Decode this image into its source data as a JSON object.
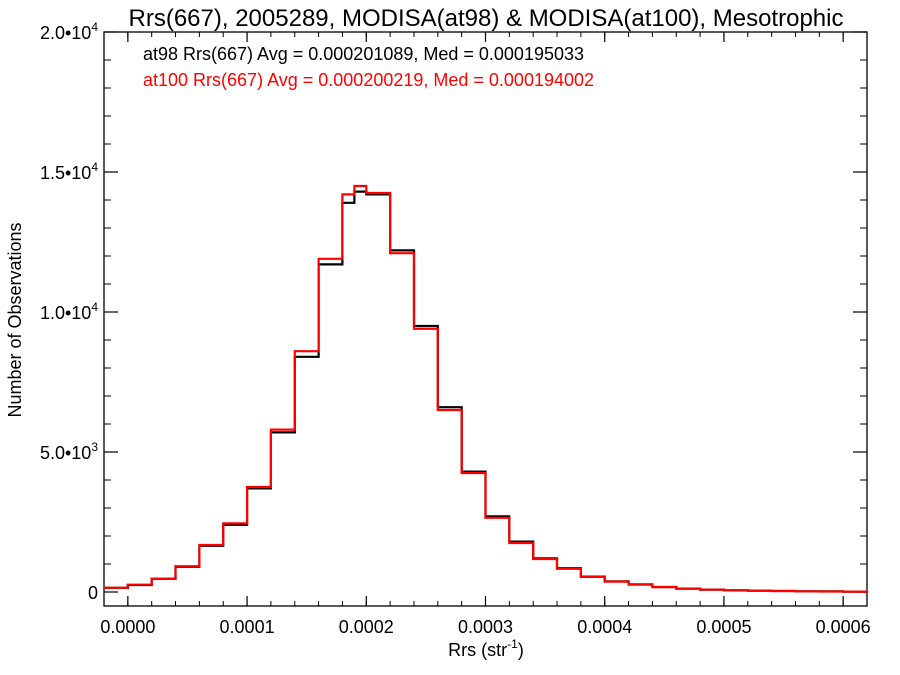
{
  "chart_data": {
    "type": "line",
    "title": "Rrs(667), 2005289, MODISA(at98) & MODISA(at100), Mesotrophic",
    "xlabel": "Rrs (str",
    "xlabel_sup": "-1",
    "xlabel_close": ")",
    "ylabel": "Number of Observations",
    "xlim": [
      -2e-05,
      0.00062
    ],
    "ylim": [
      -500,
      20000
    ],
    "x_ticks": [
      0.0,
      0.0001,
      0.0002,
      0.0003,
      0.0004,
      0.0005,
      0.0006
    ],
    "x_tick_labels": [
      "0.0000",
      "0.0001",
      "0.0002",
      "0.0003",
      "0.0004",
      "0.0005",
      "0.0006"
    ],
    "y_ticks": [
      0,
      5000,
      10000,
      15000,
      20000
    ],
    "y_tick_labels": [
      {
        "base": "0",
        "exp": ""
      },
      {
        "base": "5.0•10",
        "exp": "3"
      },
      {
        "base": "1.0•10",
        "exp": "4"
      },
      {
        "base": "1.5•10",
        "exp": "4"
      },
      {
        "base": "2.0•10",
        "exp": "4"
      }
    ],
    "legend_placement": "top-left",
    "series": [
      {
        "name": "at98",
        "color": "#000000",
        "annotation": "at98 Rrs(667) Avg = 0.000201089, Med = 0.000195033",
        "points": [
          [
            -2e-05,
            150
          ],
          [
            0.0,
            250
          ],
          [
            2e-05,
            470
          ],
          [
            4e-05,
            900
          ],
          [
            6e-05,
            1650
          ],
          [
            8e-05,
            2400
          ],
          [
            0.0001,
            3700
          ],
          [
            0.00012,
            5700
          ],
          [
            0.00014,
            8400
          ],
          [
            0.00016,
            11700
          ],
          [
            0.00018,
            13900
          ],
          [
            0.00019,
            14300
          ],
          [
            0.0002,
            14200
          ],
          [
            0.00022,
            12200
          ],
          [
            0.00024,
            9500
          ],
          [
            0.00026,
            6600
          ],
          [
            0.00028,
            4300
          ],
          [
            0.0003,
            2700
          ],
          [
            0.00032,
            1800
          ],
          [
            0.00034,
            1200
          ],
          [
            0.00036,
            850
          ],
          [
            0.00038,
            550
          ],
          [
            0.0004,
            380
          ],
          [
            0.00042,
            270
          ],
          [
            0.00044,
            180
          ],
          [
            0.00046,
            120
          ],
          [
            0.00048,
            85
          ],
          [
            0.0005,
            60
          ],
          [
            0.00052,
            45
          ],
          [
            0.00054,
            35
          ],
          [
            0.00056,
            25
          ],
          [
            0.00058,
            20
          ],
          [
            0.0006,
            15
          ],
          [
            0.00062,
            10
          ]
        ]
      },
      {
        "name": "at100",
        "color": "#ff0000",
        "annotation": "at100 Rrs(667) Avg = 0.000200219, Med = 0.000194002",
        "points": [
          [
            -2e-05,
            150
          ],
          [
            0.0,
            260
          ],
          [
            2e-05,
            480
          ],
          [
            4e-05,
            920
          ],
          [
            6e-05,
            1680
          ],
          [
            8e-05,
            2450
          ],
          [
            0.0001,
            3750
          ],
          [
            0.00012,
            5800
          ],
          [
            0.00014,
            8600
          ],
          [
            0.00016,
            11900
          ],
          [
            0.00018,
            14200
          ],
          [
            0.00019,
            14500
          ],
          [
            0.0002,
            14250
          ],
          [
            0.00022,
            12100
          ],
          [
            0.00024,
            9400
          ],
          [
            0.00026,
            6500
          ],
          [
            0.00028,
            4250
          ],
          [
            0.0003,
            2650
          ],
          [
            0.00032,
            1750
          ],
          [
            0.00034,
            1180
          ],
          [
            0.00036,
            830
          ],
          [
            0.00038,
            540
          ],
          [
            0.0004,
            370
          ],
          [
            0.00042,
            265
          ],
          [
            0.00044,
            175
          ],
          [
            0.00046,
            118
          ],
          [
            0.00048,
            83
          ],
          [
            0.0005,
            58
          ],
          [
            0.00052,
            44
          ],
          [
            0.00054,
            34
          ],
          [
            0.00056,
            24
          ],
          [
            0.00058,
            19
          ],
          [
            0.0006,
            14
          ],
          [
            0.00062,
            10
          ]
        ]
      }
    ]
  }
}
